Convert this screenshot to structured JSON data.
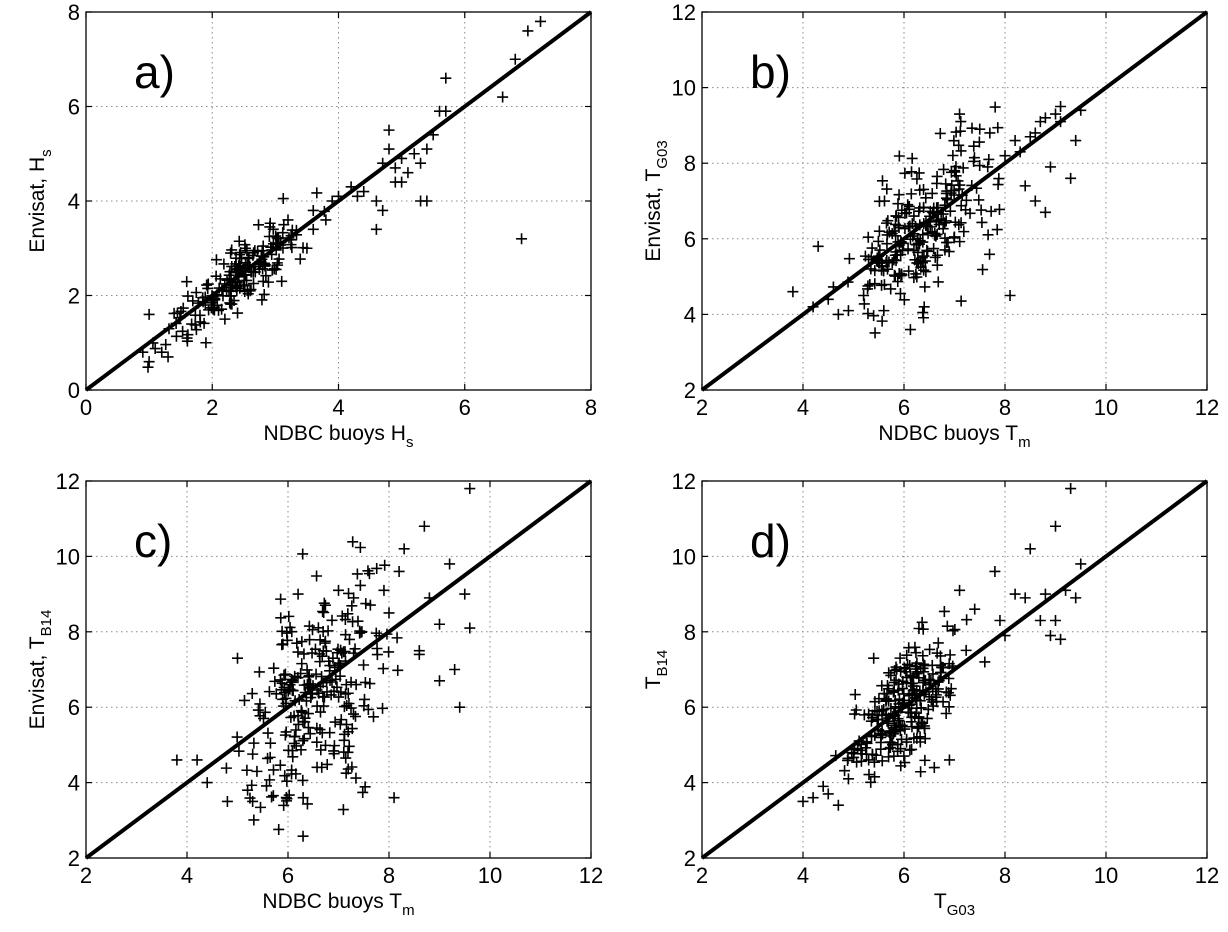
{
  "chart_data": [
    {
      "type": "scatter",
      "panel_label": "a)",
      "xlabel": {
        "main": "NDBC buoys  H",
        "sub": "s"
      },
      "ylabel": {
        "main": "Envisat,  H",
        "sub": "s"
      },
      "xlim": [
        0,
        8
      ],
      "ylim": [
        0,
        8
      ],
      "xticks": [
        0,
        2,
        4,
        6,
        8
      ],
      "yticks": [
        0,
        2,
        4,
        6,
        8
      ],
      "grid": true,
      "reference_line": [
        [
          0,
          0
        ],
        [
          8,
          8
        ]
      ],
      "cluster": {
        "n": 190,
        "x_range": [
          0.85,
          3.9
        ],
        "slope": 1.0,
        "offset": 0.0,
        "spread": 0.35,
        "seed": 11
      },
      "points": [
        [
          0.9,
          0.8
        ],
        [
          1.0,
          0.6
        ],
        [
          1.0,
          1.6
        ],
        [
          1.2,
          0.8
        ],
        [
          1.3,
          0.7
        ],
        [
          1.6,
          1.1
        ],
        [
          1.9,
          1.0
        ],
        [
          2.2,
          1.5
        ],
        [
          2.6,
          2.1
        ],
        [
          3.1,
          2.3
        ],
        [
          3.2,
          3.6
        ],
        [
          3.5,
          3.0
        ],
        [
          3.6,
          3.4
        ],
        [
          3.6,
          3.8
        ],
        [
          3.8,
          3.6
        ],
        [
          3.9,
          4.0
        ],
        [
          4.0,
          4.1
        ],
        [
          4.2,
          4.3
        ],
        [
          4.3,
          4.1
        ],
        [
          4.4,
          4.2
        ],
        [
          4.6,
          4.0
        ],
        [
          4.6,
          3.4
        ],
        [
          4.7,
          3.8
        ],
        [
          4.7,
          4.8
        ],
        [
          4.8,
          5.5
        ],
        [
          4.8,
          5.1
        ],
        [
          4.9,
          4.7
        ],
        [
          4.9,
          4.4
        ],
        [
          5.0,
          4.9
        ],
        [
          5.0,
          4.4
        ],
        [
          5.1,
          4.6
        ],
        [
          5.2,
          5.0
        ],
        [
          5.3,
          4.8
        ],
        [
          5.4,
          5.1
        ],
        [
          5.3,
          4.0
        ],
        [
          5.5,
          5.4
        ],
        [
          5.4,
          4.0
        ],
        [
          5.6,
          5.9
        ],
        [
          5.7,
          6.6
        ],
        [
          5.7,
          5.9
        ],
        [
          6.6,
          6.2
        ],
        [
          6.8,
          7.0
        ],
        [
          7.0,
          7.6
        ],
        [
          7.2,
          7.8
        ],
        [
          6.9,
          3.2
        ]
      ]
    },
    {
      "type": "scatter",
      "panel_label": "b)",
      "xlabel": {
        "main": "NDBC buoys  T",
        "sub": "m"
      },
      "ylabel": {
        "main": "Envisat, T",
        "sub": "G03"
      },
      "xlim": [
        2,
        12
      ],
      "ylim": [
        2,
        12
      ],
      "xticks": [
        2,
        4,
        6,
        8,
        10,
        12
      ],
      "yticks": [
        2,
        4,
        6,
        8,
        10,
        12
      ],
      "grid": true,
      "reference_line": [
        [
          2,
          2
        ],
        [
          12,
          12
        ]
      ],
      "cluster": {
        "n": 250,
        "x_range": [
          4.4,
          8.4
        ],
        "slope": 0.78,
        "offset": 1.25,
        "spread": 0.55,
        "seed": 23
      },
      "points": [
        [
          3.8,
          4.6
        ],
        [
          4.2,
          4.2
        ],
        [
          4.3,
          5.8
        ],
        [
          4.5,
          4.4
        ],
        [
          4.7,
          4.0
        ],
        [
          4.9,
          4.1
        ],
        [
          5.2,
          4.5
        ],
        [
          5.6,
          4.1
        ],
        [
          6.4,
          4.2
        ],
        [
          7.1,
          9.3
        ],
        [
          7.5,
          8.9
        ],
        [
          7.7,
          8.8
        ],
        [
          8.0,
          8.2
        ],
        [
          8.1,
          4.5
        ],
        [
          8.2,
          8.6
        ],
        [
          8.3,
          8.3
        ],
        [
          8.5,
          8.7
        ],
        [
          8.6,
          8.8
        ],
        [
          8.7,
          9.1
        ],
        [
          8.8,
          6.7
        ],
        [
          8.8,
          9.2
        ],
        [
          9.0,
          9.3
        ],
        [
          9.1,
          9.5
        ],
        [
          9.3,
          7.6
        ],
        [
          9.4,
          8.6
        ],
        [
          9.5,
          9.4
        ],
        [
          9.1,
          9.1
        ],
        [
          8.9,
          7.9
        ],
        [
          8.6,
          7.0
        ],
        [
          8.4,
          7.4
        ]
      ]
    },
    {
      "type": "scatter",
      "panel_label": "c)",
      "xlabel": {
        "main": "NDBC buoys  T",
        "sub": "m"
      },
      "ylabel": {
        "main": "Envisat,  T",
        "sub": "B14"
      },
      "xlim": [
        2,
        12
      ],
      "ylim": [
        2,
        12
      ],
      "xticks": [
        2,
        4,
        6,
        8,
        10,
        12
      ],
      "yticks": [
        2,
        4,
        6,
        8,
        10,
        12
      ],
      "grid": true,
      "reference_line": [
        [
          2,
          2
        ],
        [
          12,
          12
        ]
      ],
      "cluster": {
        "n": 270,
        "x_range": [
          4.4,
          8.6
        ],
        "slope": 0.72,
        "offset": 1.55,
        "spread": 0.85,
        "seed": 37
      },
      "points": [
        [
          3.8,
          4.6
        ],
        [
          4.2,
          4.6
        ],
        [
          4.4,
          4.0
        ],
        [
          4.8,
          3.5
        ],
        [
          5.0,
          7.3
        ],
        [
          5.2,
          3.8
        ],
        [
          5.3,
          3.5
        ],
        [
          6.3,
          3.6
        ],
        [
          6.2,
          9.0
        ],
        [
          7.0,
          9.1
        ],
        [
          7.3,
          8.9
        ],
        [
          7.9,
          9.1
        ],
        [
          8.0,
          8.5
        ],
        [
          8.1,
          3.6
        ],
        [
          8.2,
          9.6
        ],
        [
          8.3,
          10.2
        ],
        [
          8.6,
          7.5
        ],
        [
          8.7,
          10.8
        ],
        [
          8.8,
          8.9
        ],
        [
          9.0,
          6.7
        ],
        [
          9.2,
          9.8
        ],
        [
          9.3,
          7.0
        ],
        [
          9.4,
          6.0
        ],
        [
          9.5,
          9.0
        ],
        [
          9.6,
          8.1
        ],
        [
          9.6,
          11.8
        ],
        [
          9.0,
          8.2
        ],
        [
          8.6,
          7.4
        ]
      ]
    },
    {
      "type": "scatter",
      "panel_label": "d)",
      "xlabel": {
        "main": "T",
        "sub": "G03"
      },
      "ylabel": {
        "main": "T",
        "sub": "B14"
      },
      "xlim": [
        2,
        12
      ],
      "ylim": [
        2,
        12
      ],
      "xticks": [
        2,
        4,
        6,
        8,
        10,
        12
      ],
      "yticks": [
        2,
        4,
        6,
        8,
        10,
        12
      ],
      "grid": true,
      "reference_line": [
        [
          2,
          2
        ],
        [
          12,
          12
        ]
      ],
      "cluster": {
        "n": 260,
        "x_range": [
          4.5,
          7.6
        ],
        "slope": 1.0,
        "offset": 0.0,
        "spread": 0.5,
        "seed": 53
      },
      "points": [
        [
          4.0,
          3.5
        ],
        [
          4.2,
          3.6
        ],
        [
          4.4,
          3.9
        ],
        [
          4.5,
          3.7
        ],
        [
          4.7,
          3.4
        ],
        [
          4.9,
          4.1
        ],
        [
          5.3,
          4.6
        ],
        [
          5.4,
          7.3
        ],
        [
          5.8,
          4.7
        ],
        [
          6.6,
          4.4
        ],
        [
          6.9,
          4.6
        ],
        [
          7.1,
          9.1
        ],
        [
          7.4,
          8.6
        ],
        [
          7.6,
          7.2
        ],
        [
          7.8,
          9.6
        ],
        [
          7.9,
          8.3
        ],
        [
          8.0,
          7.9
        ],
        [
          8.2,
          9.0
        ],
        [
          8.4,
          8.9
        ],
        [
          8.5,
          10.2
        ],
        [
          8.7,
          8.3
        ],
        [
          8.8,
          9.0
        ],
        [
          8.9,
          7.9
        ],
        [
          9.0,
          8.3
        ],
        [
          9.0,
          10.8
        ],
        [
          9.2,
          9.1
        ],
        [
          9.3,
          11.8
        ],
        [
          9.4,
          8.9
        ],
        [
          9.5,
          9.8
        ],
        [
          9.1,
          7.8
        ]
      ]
    }
  ]
}
